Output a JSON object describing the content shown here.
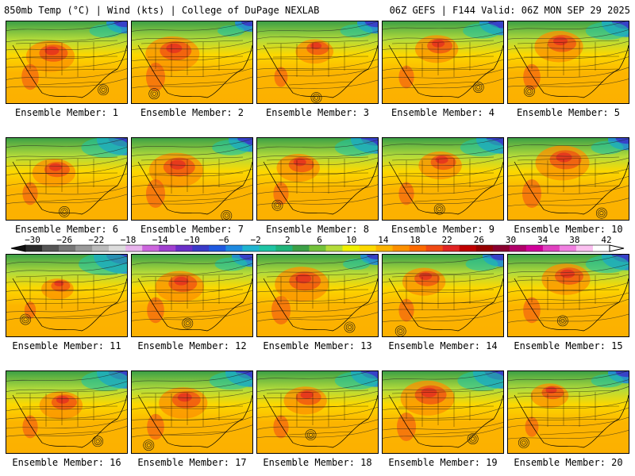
{
  "header": {
    "left": "850mb Temp (°C) | Wind (kts) | College of DuPage NEXLAB",
    "right": "06Z GEFS | F144 Valid: 06Z MON SEP 29 2025"
  },
  "members": [
    {
      "label": "Ensemble Member: 1",
      "warm": 0.9,
      "cold": 0.6
    },
    {
      "label": "Ensemble Member: 2",
      "warm": 1.0,
      "cold": 0.5
    },
    {
      "label": "Ensemble Member: 3",
      "warm": 0.7,
      "cold": 0.6
    },
    {
      "label": "Ensemble Member: 4",
      "warm": 0.8,
      "cold": 0.7
    },
    {
      "label": "Ensemble Member: 5",
      "warm": 0.9,
      "cold": 0.8
    },
    {
      "label": "Ensemble Member: 6",
      "warm": 0.8,
      "cold": 0.9
    },
    {
      "label": "Ensemble Member: 7",
      "warm": 1.0,
      "cold": 0.7
    },
    {
      "label": "Ensemble Member: 8",
      "warm": 0.8,
      "cold": 0.8
    },
    {
      "label": "Ensemble Member: 9",
      "warm": 0.8,
      "cold": 0.8
    },
    {
      "label": "Ensemble Member: 10",
      "warm": 1.0,
      "cold": 0.6
    },
    {
      "label": "Ensemble Member: 11",
      "warm": 0.6,
      "cold": 1.0
    },
    {
      "label": "Ensemble Member: 12",
      "warm": 0.9,
      "cold": 0.6
    },
    {
      "label": "Ensemble Member: 13",
      "warm": 1.0,
      "cold": 0.5
    },
    {
      "label": "Ensemble Member: 14",
      "warm": 0.8,
      "cold": 0.6
    },
    {
      "label": "Ensemble Member: 15",
      "warm": 0.9,
      "cold": 0.8
    },
    {
      "label": "Ensemble Member: 16",
      "warm": 0.8,
      "cold": 0.9
    },
    {
      "label": "Ensemble Member: 17",
      "warm": 0.9,
      "cold": 0.8
    },
    {
      "label": "Ensemble Member: 18",
      "warm": 0.8,
      "cold": 0.8
    },
    {
      "label": "Ensemble Member: 19",
      "warm": 1.0,
      "cold": 0.9
    },
    {
      "label": "Ensemble Member: 20",
      "warm": 0.7,
      "cold": 0.6
    }
  ],
  "colorbar": {
    "ticks": [
      "−30",
      "−26",
      "−22",
      "−18",
      "−14",
      "−10",
      "−6",
      "−2",
      "2",
      "6",
      "10",
      "14",
      "18",
      "22",
      "26",
      "30",
      "34",
      "38",
      "42"
    ],
    "colors": [
      "#2a2a2a",
      "#555555",
      "#777777",
      "#999999",
      "#bbbbbb",
      "#dcdcdc",
      "#e8b4ec",
      "#cc66dd",
      "#a040d0",
      "#6a2fc8",
      "#3a3ac8",
      "#1f5ae0",
      "#1f8ae0",
      "#1fb4d0",
      "#1fc4a4",
      "#20b47a",
      "#3ca046",
      "#74c23a",
      "#b4dc3a",
      "#f0f000",
      "#fcd800",
      "#fcb400",
      "#fc9000",
      "#fc6a00",
      "#f04a14",
      "#e02424",
      "#c00000",
      "#960000",
      "#8a0030",
      "#b0006a",
      "#d0009a",
      "#e040c0",
      "#f080e0",
      "#fbc0f0",
      "#ffffff"
    ]
  }
}
